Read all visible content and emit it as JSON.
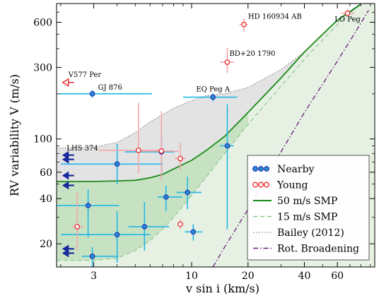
{
  "chart_data": {
    "type": "scatter",
    "xlabel": "v sin i (km/s)",
    "ylabel": "RV variability V (m/s)",
    "x_scale": "log",
    "y_scale": "log",
    "xlim": [
      1.9,
      95
    ],
    "ylim": [
      14,
      800
    ],
    "x_ticks": [
      {
        "value": 3,
        "label": "3"
      },
      {
        "value": 10,
        "label": "10"
      },
      {
        "value": 20,
        "label": "20"
      },
      {
        "value": 40,
        "label": "40"
      },
      {
        "value": 60,
        "label": "60"
      }
    ],
    "y_ticks": [
      {
        "value": 20,
        "label": "20"
      },
      {
        "value": 40,
        "label": "40"
      },
      {
        "value": 60,
        "label": "60"
      },
      {
        "value": 100,
        "label": "100"
      },
      {
        "value": 300,
        "label": "300"
      },
      {
        "value": 600,
        "label": "600"
      }
    ],
    "legend": {
      "placement": "lower-right",
      "entries": [
        {
          "label": "Nearby",
          "kind": "marker",
          "color": "#1f3fbf",
          "face": "#2b8ac9"
        },
        {
          "label": "Young",
          "kind": "marker",
          "color": "#e8262b",
          "face": "#ffffff"
        },
        {
          "label": "50 m/s SMP",
          "kind": "line",
          "color": "#1a8a1a",
          "dash": "solid"
        },
        {
          "label": "15 m/s SMP",
          "kind": "line",
          "color": "#8fc98f",
          "dash": "dashed"
        },
        {
          "label": "Bailey (2012)",
          "kind": "line",
          "color": "#999999",
          "dash": "dotted"
        },
        {
          "label": "Rot. Broadening",
          "kind": "line",
          "color": "#6a1b7a",
          "dash": "dashdot"
        }
      ]
    },
    "series": [
      {
        "name": "Nearby",
        "marker_edge": "#1f3fbf",
        "marker_face": "#2b8ac9",
        "errorbar_color": "#22b8e6",
        "points": [
          {
            "x": 2.95,
            "y": 200,
            "xerr": [
              1.0,
              3.2
            ],
            "yerr": [
              12,
              12
            ],
            "label": "GJ 876"
          },
          {
            "x": 4.0,
            "y": 68,
            "xerr": [
              2.0,
              3.0
            ],
            "yerr": [
              18,
              25
            ]
          },
          {
            "x": 2.8,
            "y": 36,
            "xerr": [
              0.9,
              1.3
            ],
            "yerr": [
              14,
              10
            ]
          },
          {
            "x": 4.0,
            "y": 23,
            "xerr": [
              2.0,
              2.0
            ],
            "yerr": [
              8,
              10
            ]
          },
          {
            "x": 2.95,
            "y": 16.5,
            "xerr": [
              0.35,
              1.1
            ],
            "yerr": [
              2.5,
              2.5
            ]
          },
          {
            "x": 6.9,
            "y": 82,
            "xerr": [
              2.5,
              1.2
            ],
            "yerr": [
              25,
              25
            ]
          },
          {
            "x": 7.3,
            "y": 41,
            "xerr": [
              0.7,
              1.6
            ],
            "yerr": [
              8,
              8
            ]
          },
          {
            "x": 5.6,
            "y": 26,
            "xerr": [
              1.0,
              2.0
            ],
            "yerr": [
              8,
              12
            ]
          },
          {
            "x": 9.5,
            "y": 44,
            "xerr": [
              1.2,
              1.8
            ],
            "yerr": [
              10,
              12
            ]
          },
          {
            "x": 10.2,
            "y": 24,
            "xerr": [
              1.0,
              1.2
            ],
            "yerr": [
              3,
              3
            ]
          },
          {
            "x": 13.0,
            "y": 190,
            "xerr": [
              4.0,
              4.5
            ],
            "yerr": [
              12,
              12
            ],
            "label": "EQ Peg A"
          },
          {
            "x": 15.5,
            "y": 90,
            "xerr": [
              1.3,
              1.3
            ],
            "yerr": [
              65,
              80
            ]
          }
        ]
      },
      {
        "name": "Young",
        "marker_edge": "#e8262b",
        "marker_face": "#ffffff",
        "errorbar_color": "#f3a6ab",
        "points": [
          {
            "x": 2.45,
            "y": 26,
            "xerr": [
              0.15,
              0.2
            ],
            "yerr": [
              8,
              18
            ]
          },
          {
            "x": 5.2,
            "y": 84,
            "xerr": [
              2.0,
              1.9
            ],
            "yerr": [
              25,
              90
            ]
          },
          {
            "x": 6.9,
            "y": 83,
            "xerr": [
              1.7,
              1.6
            ],
            "yerr": [
              30,
              70
            ]
          },
          {
            "x": 8.7,
            "y": 74,
            "xerr": [
              0.6,
              0.6
            ],
            "yerr": [
              12,
              20
            ]
          },
          {
            "x": 8.7,
            "y": 27,
            "xerr": [
              0.3,
              0.3
            ],
            "yerr": [
              2,
              2
            ]
          },
          {
            "x": 15.5,
            "y": 325,
            "xerr": [
              1.3,
              1.3
            ],
            "yerr": [
              50,
              80
            ],
            "label": "BD+20 1790"
          },
          {
            "x": 19.0,
            "y": 580,
            "xerr": [
              1.0,
              1.0
            ],
            "yerr": [
              60,
              60
            ],
            "label": "HD 160934 AB"
          },
          {
            "x": 68.0,
            "y": 690,
            "xerr": [
              5.0,
              6.0
            ],
            "yerr": [
              40,
              40
            ],
            "label": "LO Peg"
          }
        ]
      },
      {
        "name": "Upper limits",
        "marker_edge": "#1a2a9a",
        "points": [
          {
            "x": 2.05,
            "y": 78
          },
          {
            "x": 2.05,
            "y": 73
          },
          {
            "x": 2.05,
            "y": 57
          },
          {
            "x": 2.05,
            "y": 49
          },
          {
            "x": 2.05,
            "y": 18.5
          },
          {
            "x": 2.05,
            "y": 17.3
          }
        ]
      },
      {
        "name": "V577 Per",
        "marker_edge": "#e8262b",
        "points": [
          {
            "x": 2.05,
            "y": 238,
            "label": "V577 Per"
          }
        ]
      }
    ],
    "annotations": [
      {
        "text": "LHS 374",
        "x": 2.15,
        "y": 84
      }
    ],
    "curves": {
      "smp50": {
        "label": "50 m/s SMP",
        "points": [
          [
            1.9,
            52
          ],
          [
            3,
            52
          ],
          [
            4,
            52.5
          ],
          [
            5,
            53
          ],
          [
            6,
            55
          ],
          [
            7,
            58
          ],
          [
            8,
            63
          ],
          [
            10,
            72
          ],
          [
            12,
            84
          ],
          [
            15,
            104
          ],
          [
            20,
            150
          ],
          [
            30,
            255
          ],
          [
            40,
            380
          ],
          [
            60,
            620
          ],
          [
            80,
            790
          ]
        ]
      },
      "smp15": {
        "label": "15 m/s SMP",
        "points": [
          [
            1.9,
            15.5
          ],
          [
            3,
            15.5
          ],
          [
            4,
            16
          ],
          [
            5,
            18
          ],
          [
            6,
            21
          ],
          [
            7,
            25
          ],
          [
            8,
            30
          ],
          [
            10,
            42
          ],
          [
            12,
            56
          ],
          [
            15,
            80
          ],
          [
            20,
            125
          ],
          [
            30,
            225
          ],
          [
            40,
            340
          ],
          [
            60,
            580
          ],
          [
            80,
            800
          ]
        ]
      },
      "bailey": {
        "label": "Bailey (2012)",
        "points": [
          [
            1.9,
            87
          ],
          [
            3,
            88
          ],
          [
            4,
            95
          ],
          [
            5,
            110
          ],
          [
            6,
            130
          ],
          [
            8,
            160
          ],
          [
            10,
            180
          ],
          [
            12,
            195
          ],
          [
            15,
            200
          ],
          [
            20,
            220
          ],
          [
            30,
            290
          ],
          [
            40,
            380
          ],
          [
            60,
            620
          ],
          [
            80,
            800
          ]
        ]
      },
      "rot": {
        "label": "Rot. Broadening",
        "points": [
          [
            13,
            14
          ],
          [
            15,
            19
          ],
          [
            20,
            34
          ],
          [
            30,
            82
          ],
          [
            40,
            150
          ],
          [
            60,
            330
          ],
          [
            80,
            590
          ],
          [
            88,
            720
          ]
        ]
      },
      "upper_env": [
        [
          1.9,
          87
        ],
        [
          3,
          88
        ],
        [
          4,
          95
        ],
        [
          5,
          110
        ],
        [
          6,
          130
        ],
        [
          8,
          160
        ],
        [
          10,
          180
        ],
        [
          12,
          195
        ],
        [
          15,
          200
        ],
        [
          20,
          220
        ],
        [
          30,
          290
        ],
        [
          40,
          380
        ],
        [
          60,
          620
        ],
        [
          83,
          800
        ],
        [
          95,
          800
        ]
      ],
      "lower_env": [
        [
          1.9,
          15.5
        ],
        [
          3,
          15.5
        ],
        [
          4,
          16
        ],
        [
          5,
          18
        ],
        [
          6,
          21
        ],
        [
          7,
          25
        ],
        [
          8,
          30
        ],
        [
          10,
          42
        ],
        [
          12,
          56
        ],
        [
          13,
          62
        ],
        [
          95,
          14
        ],
        [
          13,
          14
        ]
      ]
    }
  }
}
